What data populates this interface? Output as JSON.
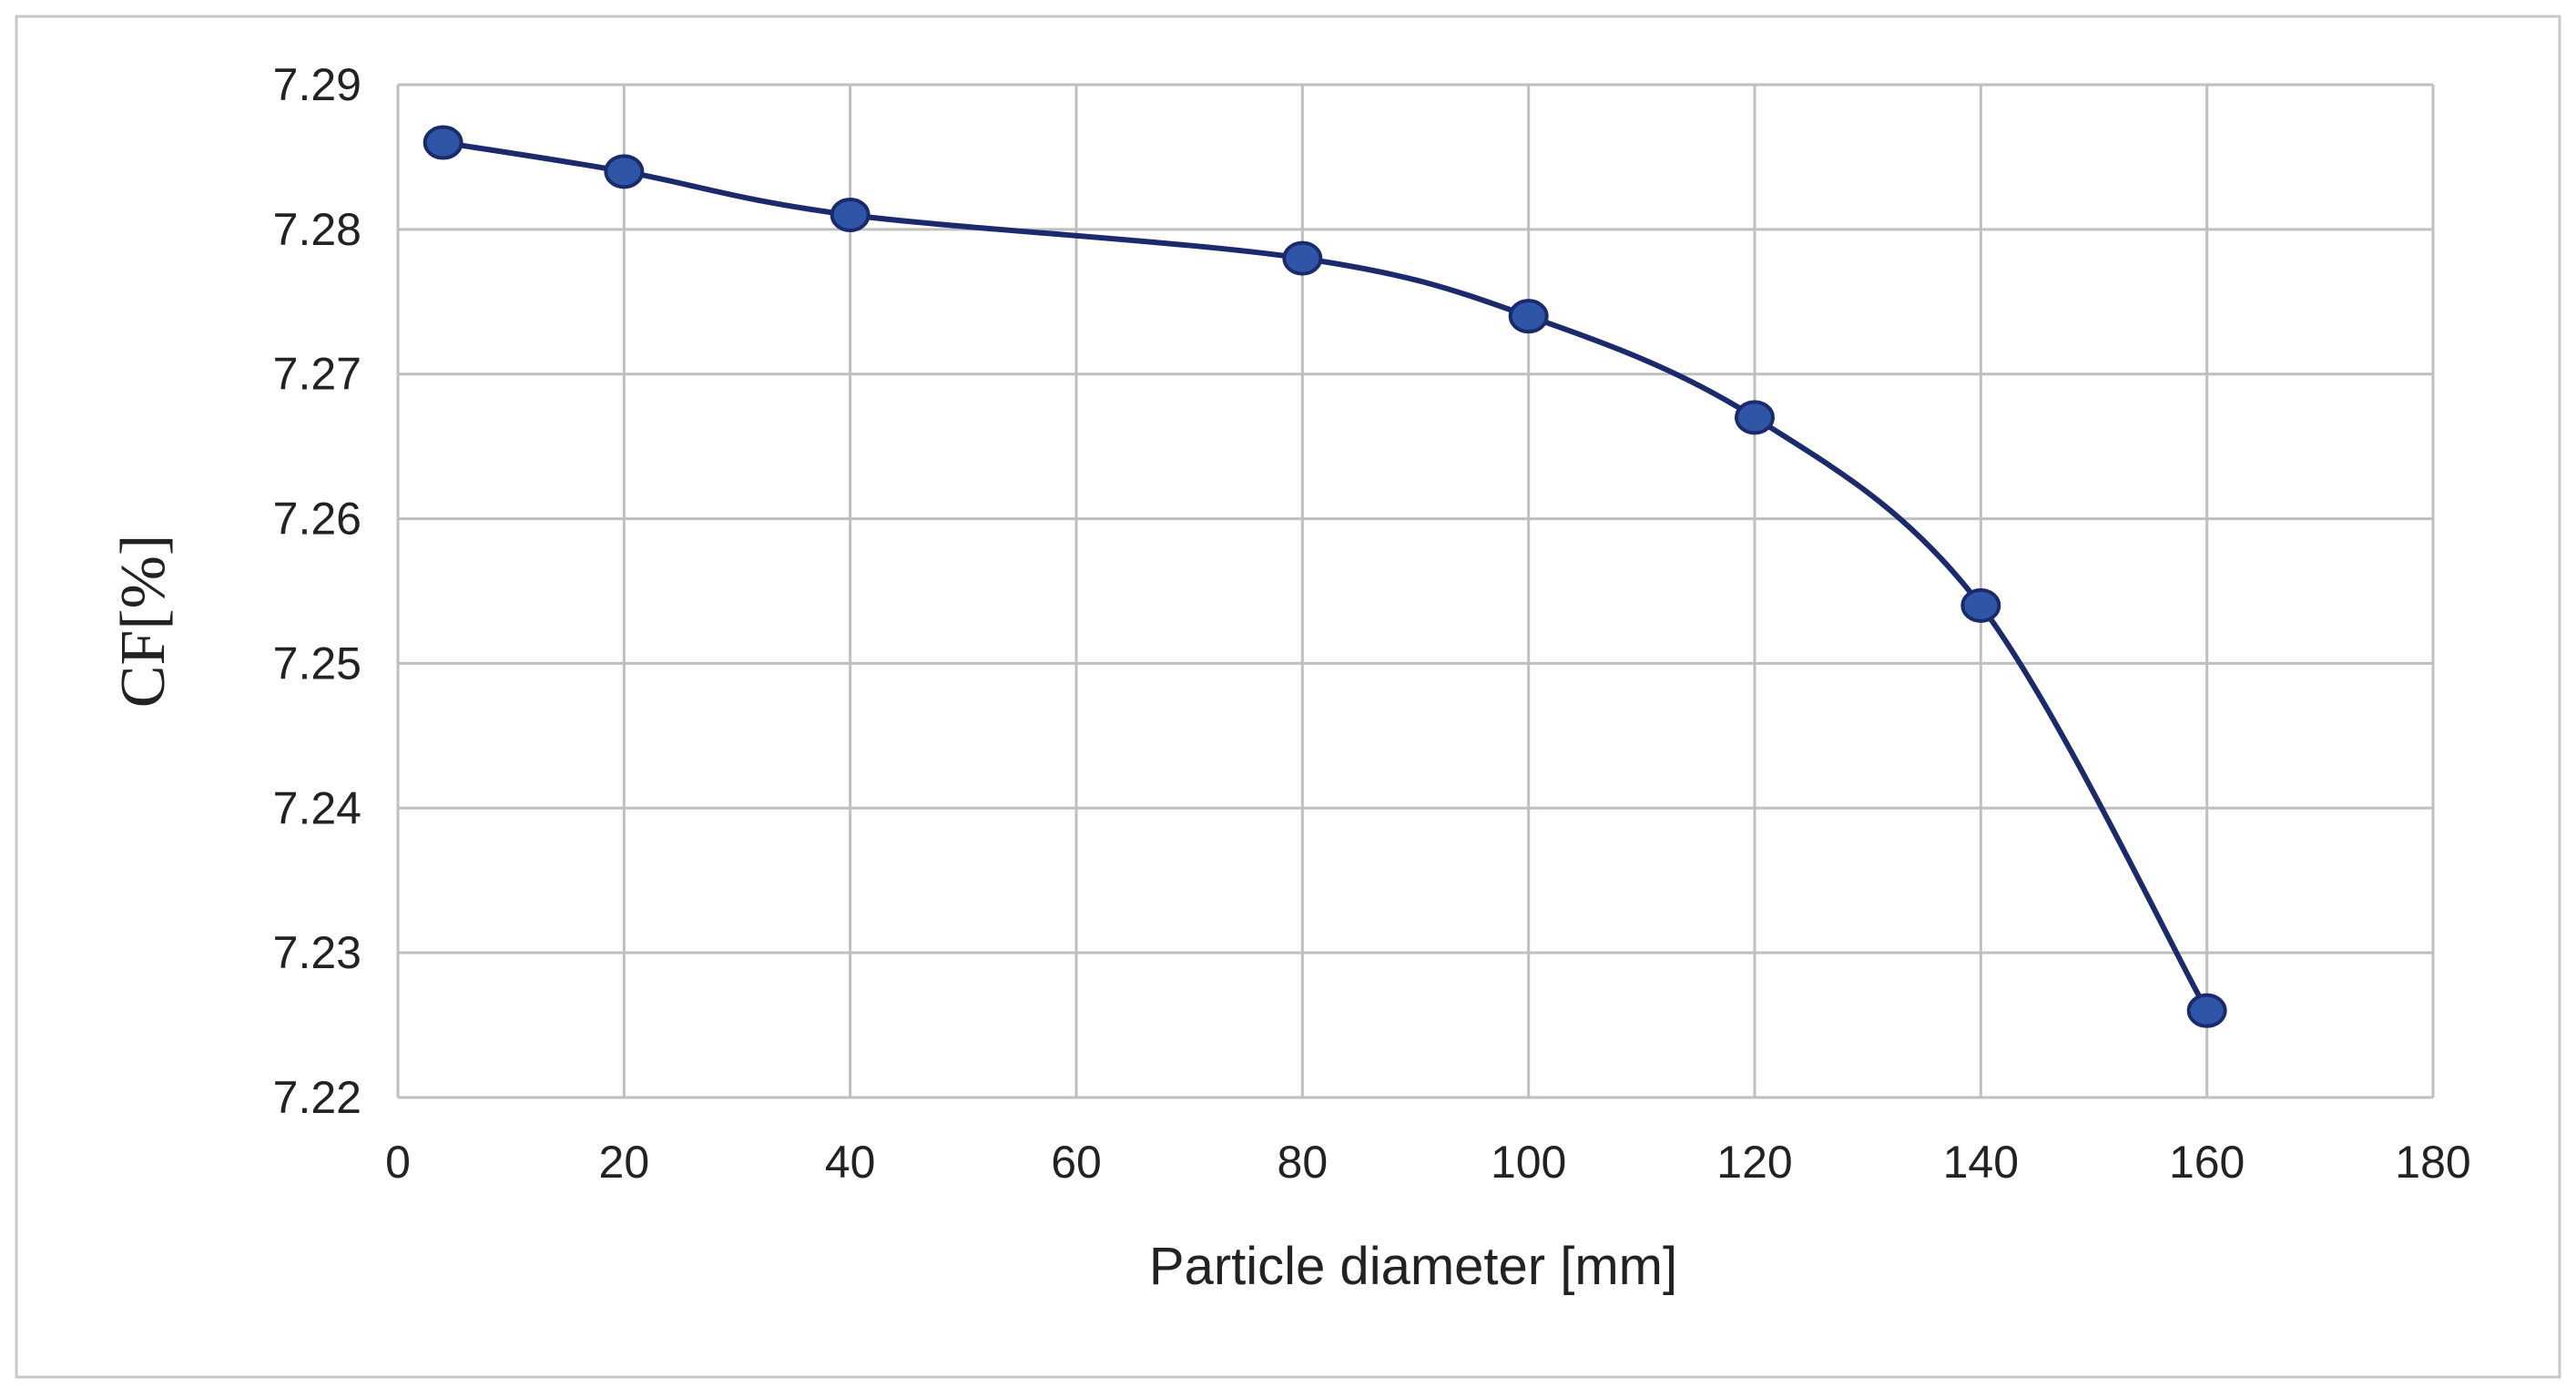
{
  "chart_data": {
    "type": "line",
    "title": "",
    "xlabel": "Particle diameter [mm]",
    "ylabel": "CF[%]",
    "xlim": [
      0,
      180
    ],
    "ylim": [
      7.22,
      7.29
    ],
    "x_ticks": [
      "0",
      "20",
      "40",
      "60",
      "80",
      "100",
      "120",
      "140",
      "160",
      "180"
    ],
    "y_ticks": [
      "7.22",
      "7.23",
      "7.24",
      "7.25",
      "7.26",
      "7.27",
      "7.28",
      "7.29"
    ],
    "grid": true,
    "legend": "none",
    "line_style": "smooth",
    "colors": {
      "line": "#1a2a6c",
      "marker": "#2e55a6",
      "marker_edge": "#1a2a6c",
      "grid": "#bfbfbf",
      "frame": "#bfbfbf"
    },
    "series": [
      {
        "x": [
          4,
          20,
          40,
          80,
          100,
          120,
          140,
          160
        ],
        "y": [
          7.286,
          7.284,
          7.281,
          7.278,
          7.274,
          7.267,
          7.254,
          7.226
        ]
      }
    ]
  }
}
